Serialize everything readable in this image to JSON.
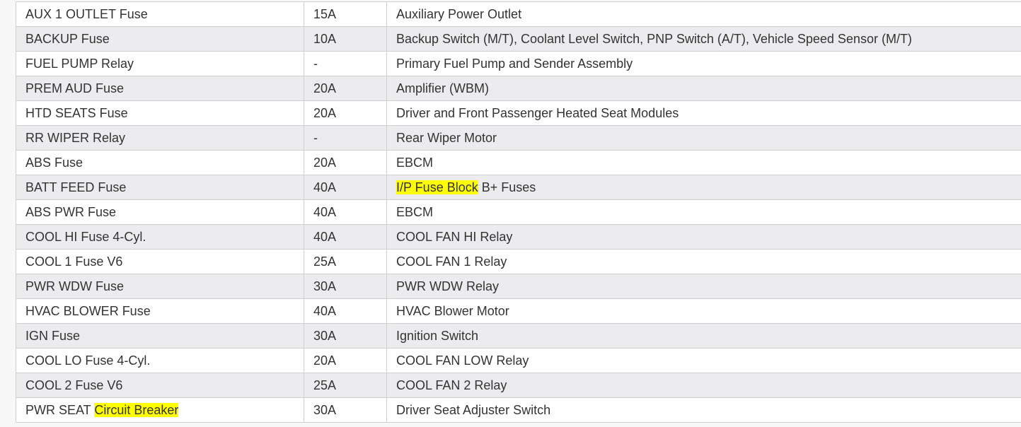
{
  "colors": {
    "highlight": "#ffff00",
    "row_alt": "#ececef",
    "border": "#cfcfcf",
    "text": "#333333"
  },
  "rows": [
    {
      "name": [
        {
          "t": "AUX 1 OUTLET Fuse"
        }
      ],
      "amps": "15A",
      "desc": [
        {
          "t": "Auxiliary Power Outlet"
        }
      ]
    },
    {
      "name": [
        {
          "t": "BACKUP Fuse"
        }
      ],
      "amps": "10A",
      "desc": [
        {
          "t": "Backup Switch (M/T), Coolant Level Switch, PNP Switch (A/T), Vehicle Speed Sensor (M/T)"
        }
      ]
    },
    {
      "name": [
        {
          "t": "FUEL PUMP Relay"
        }
      ],
      "amps": "-",
      "desc": [
        {
          "t": "Primary Fuel Pump and Sender Assembly"
        }
      ]
    },
    {
      "name": [
        {
          "t": "PREM AUD Fuse"
        }
      ],
      "amps": "20A",
      "desc": [
        {
          "t": "Amplifier (WBM)"
        }
      ]
    },
    {
      "name": [
        {
          "t": "HTD SEATS Fuse"
        }
      ],
      "amps": "20A",
      "desc": [
        {
          "t": "Driver and Front Passenger Heated Seat Modules"
        }
      ]
    },
    {
      "name": [
        {
          "t": "RR WIPER Relay"
        }
      ],
      "amps": "-",
      "desc": [
        {
          "t": "Rear Wiper Motor"
        }
      ]
    },
    {
      "name": [
        {
          "t": "ABS Fuse"
        }
      ],
      "amps": "20A",
      "desc": [
        {
          "t": "EBCM"
        }
      ]
    },
    {
      "name": [
        {
          "t": "BATT FEED Fuse"
        }
      ],
      "amps": "40A",
      "desc": [
        {
          "t": "I/P Fuse Block",
          "hl": true
        },
        {
          "t": " B+ Fuses"
        }
      ]
    },
    {
      "name": [
        {
          "t": "ABS PWR Fuse"
        }
      ],
      "amps": "40A",
      "desc": [
        {
          "t": "EBCM"
        }
      ]
    },
    {
      "name": [
        {
          "t": "COOL HI Fuse 4-Cyl."
        }
      ],
      "amps": "40A",
      "desc": [
        {
          "t": "COOL FAN HI Relay"
        }
      ]
    },
    {
      "name": [
        {
          "t": "COOL 1 Fuse V6"
        }
      ],
      "amps": "25A",
      "desc": [
        {
          "t": "COOL FAN 1 Relay"
        }
      ]
    },
    {
      "name": [
        {
          "t": "PWR WDW Fuse"
        }
      ],
      "amps": "30A",
      "desc": [
        {
          "t": "PWR WDW Relay"
        }
      ]
    },
    {
      "name": [
        {
          "t": "HVAC BLOWER Fuse"
        }
      ],
      "amps": "40A",
      "desc": [
        {
          "t": "HVAC Blower Motor"
        }
      ]
    },
    {
      "name": [
        {
          "t": "IGN Fuse"
        }
      ],
      "amps": "30A",
      "desc": [
        {
          "t": "Ignition Switch"
        }
      ]
    },
    {
      "name": [
        {
          "t": "COOL LO Fuse 4-Cyl."
        }
      ],
      "amps": "20A",
      "desc": [
        {
          "t": "COOL FAN LOW Relay"
        }
      ]
    },
    {
      "name": [
        {
          "t": "COOL 2 Fuse V6"
        }
      ],
      "amps": "25A",
      "desc": [
        {
          "t": "COOL FAN 2 Relay"
        }
      ]
    },
    {
      "name": [
        {
          "t": "PWR SEAT "
        },
        {
          "t": "Circuit Breaker",
          "hl": true
        }
      ],
      "amps": "30A",
      "desc": [
        {
          "t": "Driver Seat Adjuster Switch"
        }
      ]
    }
  ]
}
